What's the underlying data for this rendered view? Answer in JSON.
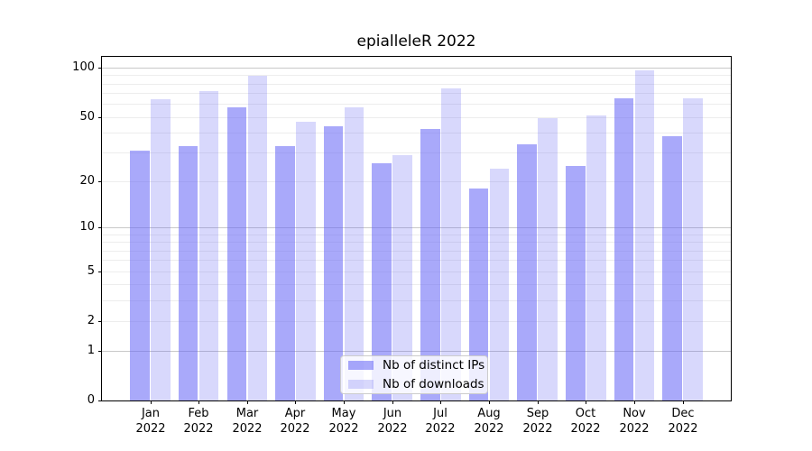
{
  "chart_data": {
    "type": "bar",
    "title": "epialleleR 2022",
    "categories": [
      "Jan",
      "Feb",
      "Mar",
      "Apr",
      "May",
      "Jun",
      "Jul",
      "Aug",
      "Sep",
      "Oct",
      "Nov",
      "Dec"
    ],
    "category_year": "2022",
    "series": [
      {
        "key": "distinct-ips",
        "name": "Nb of distinct IPs",
        "color": "rgba(98,98,245,0.55)",
        "color_hex_on_white": "#a8a8f8",
        "values": [
          31,
          33,
          57,
          33,
          44,
          26,
          42,
          18,
          34,
          25,
          65,
          38
        ]
      },
      {
        "key": "downloads",
        "name": "Nb of downloads",
        "color": "rgba(98,98,245,0.25)",
        "color_hex_on_white": "#d8d8f8",
        "values": [
          64,
          72,
          89,
          47,
          57,
          29,
          75,
          24,
          49,
          51,
          96,
          65
        ]
      }
    ],
    "xlabel": "",
    "ylabel": "",
    "yscale": "log10(1+x)",
    "ylim": [
      0,
      116
    ],
    "yticks": [
      0,
      1,
      2,
      5,
      10,
      20,
      50,
      100
    ],
    "ytick_labels": [
      "0",
      "1",
      "2",
      "5",
      "10",
      "20",
      "50",
      "100"
    ],
    "gridlines_major": [
      1,
      10,
      100
    ],
    "gridlines_minor": [
      2,
      3,
      4,
      5,
      6,
      7,
      8,
      9,
      20,
      30,
      40,
      50,
      60,
      70,
      80,
      90
    ],
    "grid": "on",
    "legend_position": "bottom-center"
  },
  "colors": {
    "bar_distinct_ips": "#a8a8f8",
    "bar_downloads": "#d8d8f8",
    "grid_major": "#c9c9c9",
    "grid_minor": "#ededed",
    "axis": "#000000",
    "legend_border": "#cccccc"
  }
}
